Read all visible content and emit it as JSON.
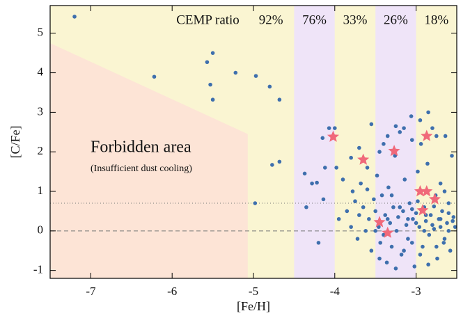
{
  "chart_data": {
    "type": "scatter",
    "xlabel": "[Fe/H]",
    "ylabel": "[C/Fe]",
    "xlim": [
      -7.5,
      -2.5
    ],
    "ylim": [
      -1.2,
      5.7
    ],
    "xticks": [
      -7,
      -6,
      -5,
      -4,
      -3
    ],
    "yticks": [
      -1,
      0,
      1,
      2,
      3,
      4,
      5
    ],
    "background_color": "#faf5d2",
    "cemp_ratio": {
      "label": "CEMP ratio",
      "bins": [
        -5.07,
        -4.5,
        -4,
        -3.5,
        -3,
        -2.5
      ],
      "colors": [
        "#faf5d2",
        "#efe4f8",
        "#faf5d2",
        "#efe4f8",
        "#faf5d2"
      ],
      "values": [
        92,
        76,
        33,
        26,
        18
      ],
      "value_labels": [
        "92%",
        "76%",
        "33%",
        "26%",
        "18%"
      ]
    },
    "forbidden_area": {
      "label": "Forbidden area",
      "sublabel": "(Insufficient dust cooling)",
      "color": "#fde4d6",
      "x": [
        -7.5,
        -5.07,
        -5.07,
        -7.5
      ],
      "y": [
        4.75,
        2.45,
        -1.2,
        -1.2
      ]
    },
    "reference_lines": [
      {
        "y": 0,
        "style": "dashed"
      },
      {
        "y": 0.7,
        "style": "dotted"
      }
    ],
    "series": [
      {
        "color": "#3e6fad",
        "marker": "circle",
        "x": [
          -7.2,
          -6.22,
          -5.57,
          -5.5,
          -5.53,
          -5.5,
          -5.22,
          -4.97,
          -4.8,
          -4.68,
          -4.77,
          -4.68,
          -4.98,
          -4.37,
          -4.35,
          -4.22,
          -4.2,
          -4.07,
          -4.15,
          -4.0,
          -4.12,
          -3.98,
          -4.14,
          -4.28,
          -3.95,
          -3.9,
          -3.85,
          -3.8,
          -3.78,
          -3.75,
          -3.72,
          -3.7,
          -3.68,
          -3.65,
          -3.62,
          -3.6,
          -3.58,
          -3.55,
          -3.52,
          -3.5,
          -3.48,
          -3.46,
          -3.44,
          -3.42,
          -3.4,
          -3.38,
          -3.36,
          -3.34,
          -3.32,
          -3.3,
          -3.28,
          -3.26,
          -3.24,
          -3.22,
          -3.2,
          -3.18,
          -3.16,
          -3.14,
          -3.12,
          -3.1,
          -3.08,
          -3.06,
          -3.04,
          -3.02,
          -3.0,
          -2.98,
          -2.96,
          -2.94,
          -2.92,
          -2.9,
          -2.88,
          -2.86,
          -2.84,
          -2.82,
          -2.8,
          -2.78,
          -2.76,
          -2.74,
          -2.72,
          -2.7,
          -2.68,
          -2.66,
          -2.64,
          -2.62,
          -2.6,
          -2.58,
          -2.56,
          -2.54,
          -2.52,
          -3.55,
          -3.45,
          -3.35,
          -3.25,
          -3.15,
          -3.05,
          -2.95,
          -2.85,
          -2.75,
          -2.65,
          -3.7,
          -3.8,
          -3.6,
          -3.5,
          -3.4,
          -3.3,
          -3.2,
          -3.1,
          -3.0,
          -2.9,
          -2.8,
          -2.7,
          -2.6,
          -2.55,
          -3.15,
          -3.05,
          -2.95,
          -2.85,
          -2.75,
          -2.65,
          -3.25,
          -3.45,
          -3.35,
          -3.05,
          -2.88,
          -2.7,
          -2.6,
          -2.78,
          -2.98
        ],
        "y": [
          5.42,
          3.9,
          4.27,
          4.5,
          3.7,
          3.32,
          4.0,
          3.92,
          3.65,
          3.32,
          1.67,
          1.75,
          0.7,
          1.45,
          0.6,
          1.22,
          -0.3,
          2.6,
          2.35,
          2.6,
          1.6,
          1.6,
          0.8,
          1.2,
          0.3,
          1.3,
          0.5,
          0.1,
          1.0,
          0.75,
          -0.2,
          0.4,
          1.2,
          0.6,
          0.0,
          1.6,
          0.3,
          -0.5,
          0.8,
          0.5,
          1.4,
          0.1,
          -0.3,
          0.9,
          2.2,
          0.4,
          -0.8,
          1.1,
          0.2,
          -0.4,
          0.6,
          1.9,
          0.0,
          0.35,
          2.5,
          -0.6,
          0.5,
          1.3,
          0.15,
          -0.2,
          0.7,
          2.9,
          0.3,
          -0.9,
          0.45,
          1.5,
          0.1,
          2.2,
          -0.4,
          0.6,
          0.25,
          1.7,
          -0.1,
          0.4,
          2.6,
          0.05,
          0.9,
          -0.7,
          0.3,
          1.2,
          0.5,
          -0.3,
          2.4,
          0.2,
          0.7,
          -0.5,
          1.9,
          0.35,
          0.1,
          2.7,
          2.0,
          2.4,
          2.65,
          2.6,
          2.3,
          2.8,
          3.0,
          2.4,
          1.0,
          2.1,
          1.85,
          1.05,
          0.0,
          -0.1,
          0.9,
          0.6,
          0.3,
          0.2,
          0.0,
          0.15,
          0.3,
          0.45,
          0.25,
          -0.5,
          -0.3,
          -0.6,
          -0.85,
          -0.4,
          -0.2,
          -0.95,
          -0.7,
          0.3,
          0.55,
          0.4,
          0.1,
          0.0,
          0.62,
          0.75
        ]
      },
      {
        "color": "#f0697a",
        "marker": "star",
        "x": [
          -4.02,
          -3.65,
          -3.27,
          -2.87,
          -2.95,
          -2.87,
          -2.77,
          -2.92,
          -3.45,
          -3.35
        ],
        "y": [
          2.38,
          1.8,
          2.02,
          2.4,
          1.0,
          1.0,
          0.8,
          0.52,
          0.22,
          -0.05
        ]
      }
    ]
  }
}
